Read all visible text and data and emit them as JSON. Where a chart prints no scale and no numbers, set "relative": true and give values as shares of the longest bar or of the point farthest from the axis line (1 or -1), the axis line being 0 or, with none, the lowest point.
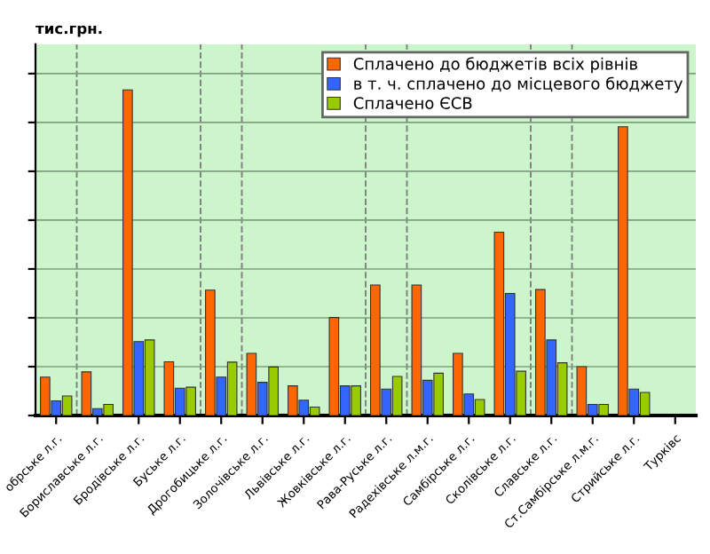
{
  "chart_data": {
    "type": "bar",
    "relative": true,
    "ylabel": "тис.грн.",
    "categories": [
      "обрське л.г.",
      "Бориславське л.г.",
      "Бродівське л.г.",
      "Буське л.г.",
      "Дрогобицьке л.г.",
      "Золочівське л.г.",
      "Львівське л.г.",
      "Жовківське л.г.",
      "Рава-Руське л.г.",
      "Радехівське л.м.г.",
      "Самбірське л.г.",
      "Сколівське л.г.",
      "Славське л.г.",
      "Ст.Самбірське л.м.г.",
      "Стрийське л.г.",
      "Турківс"
    ],
    "series": [
      {
        "name": "Сплачено до бюджетів всіх рівнів",
        "color": "#ff6600",
        "values": [
          0.118,
          0.134,
          1.0,
          0.165,
          0.385,
          0.191,
          0.091,
          0.301,
          0.401,
          0.401,
          0.191,
          0.563,
          0.387,
          0.15,
          0.887,
          null
        ]
      },
      {
        "name": "в т. ч. сплачено до місцевого бюджету",
        "color": "#3366ff",
        "values": [
          0.045,
          0.021,
          0.227,
          0.084,
          0.118,
          0.102,
          0.047,
          0.091,
          0.081,
          0.108,
          0.066,
          0.375,
          0.232,
          0.034,
          0.081,
          null
        ]
      },
      {
        "name": "Сплачено ЄСВ",
        "color": "#99cc00",
        "values": [
          0.06,
          0.034,
          0.232,
          0.087,
          0.164,
          0.149,
          0.026,
          0.091,
          0.12,
          0.13,
          0.049,
          0.136,
          0.162,
          0.034,
          0.071,
          null
        ]
      }
    ],
    "grid": "y",
    "legend": "top right"
  }
}
